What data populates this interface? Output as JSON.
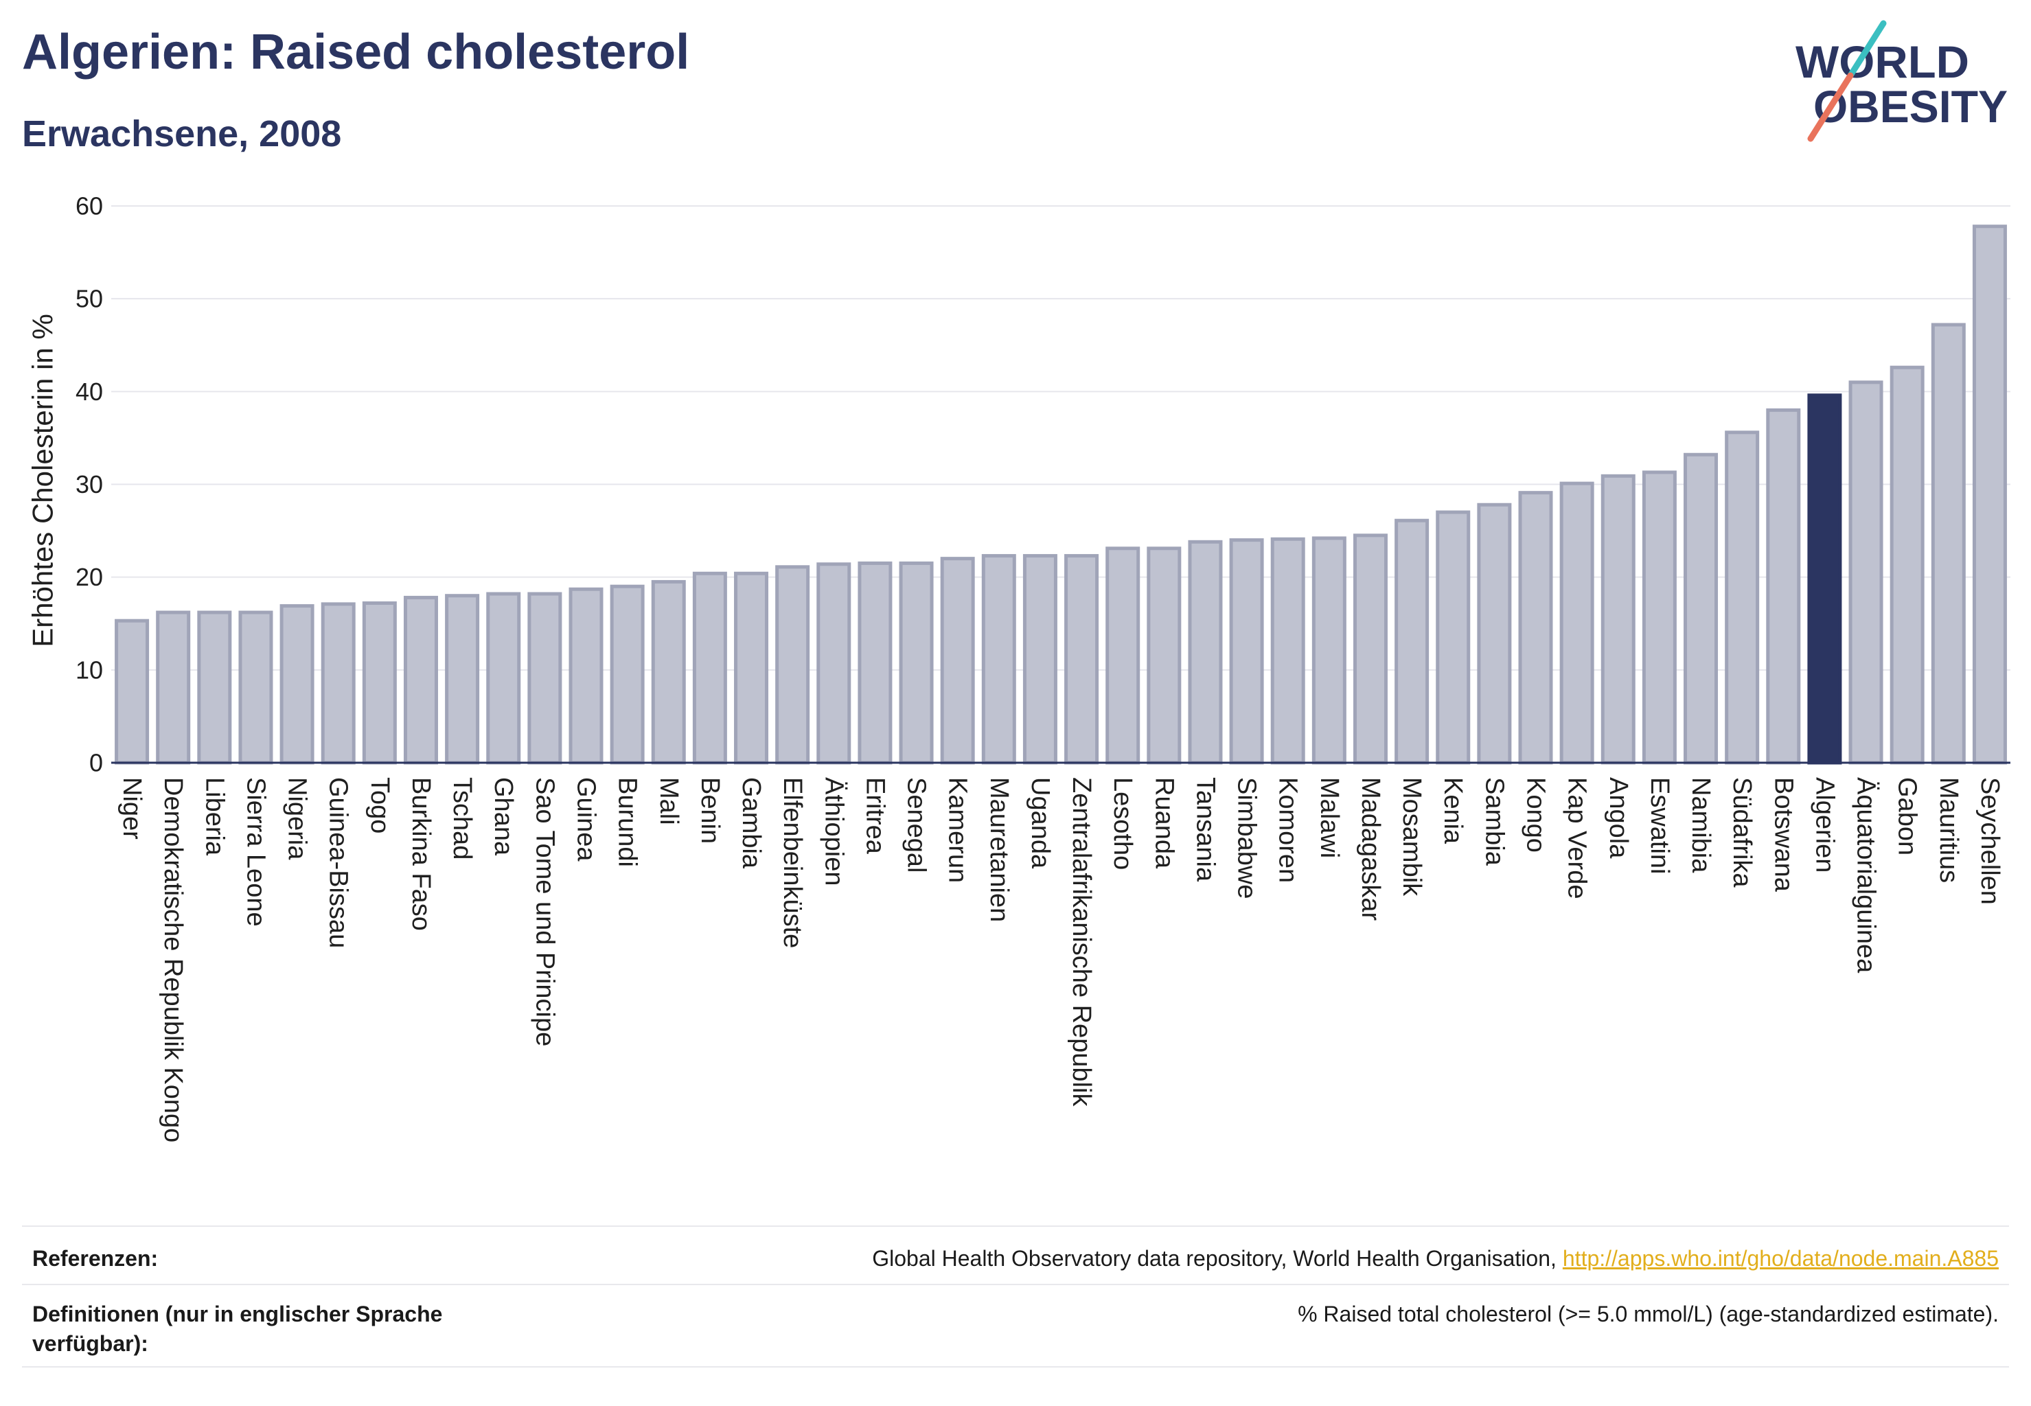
{
  "colors": {
    "title": "#2b3561",
    "bar_fill": "#bfc2d0",
    "bar_border": "#a0a4b8",
    "bar_highlight": "#2b3561",
    "grid": "#e6e6ec",
    "axis": "#2b3561",
    "link": "#e2ae1c",
    "logo_teal": "#3bbfc1",
    "logo_coral": "#e9735c"
  },
  "logo": {
    "line1": "WORLD",
    "line2": "OBESITY"
  },
  "chart_data": {
    "type": "bar",
    "title": "Algerien: Raised cholesterol",
    "subtitle": "Erwachsene, 2008",
    "ylabel": "Erhöhtes Cholesterin in %",
    "ylim": [
      0,
      60
    ],
    "yticks": [
      0,
      10,
      20,
      30,
      40,
      50,
      60
    ],
    "grid": true,
    "highlight": "Algerien",
    "categories": [
      "Niger",
      "Demokratische Republik Kongo",
      "Liberia",
      "Sierra Leone",
      "Nigeria",
      "Guinea-Bissau",
      "Togo",
      "Burkina Faso",
      "Tschad",
      "Ghana",
      "Sao Tome und Principe",
      "Guinea",
      "Burundi",
      "Mali",
      "Benin",
      "Gambia",
      "Elfenbeinküste",
      "Äthiopien",
      "Eritrea",
      "Senegal",
      "Kamerun",
      "Mauretanien",
      "Uganda",
      "Zentralafrikanische Republik",
      "Lesotho",
      "Ruanda",
      "Tansania",
      "Simbabwe",
      "Komoren",
      "Malawi",
      "Madagaskar",
      "Mosambik",
      "Kenia",
      "Sambia",
      "Kongo",
      "Kap Verde",
      "Angola",
      "Eswatini",
      "Namibia",
      "Südafrika",
      "Botswana",
      "Algerien",
      "Äquatorialguinea",
      "Gabon",
      "Mauritius",
      "Seychellen"
    ],
    "values": [
      15.3,
      16.2,
      16.2,
      16.2,
      16.9,
      17.1,
      17.2,
      17.8,
      18.0,
      18.2,
      18.2,
      18.7,
      19.0,
      19.5,
      20.4,
      20.4,
      21.1,
      21.4,
      21.5,
      21.5,
      22.0,
      22.3,
      22.3,
      22.3,
      23.1,
      23.1,
      23.8,
      24.0,
      24.1,
      24.2,
      24.5,
      26.1,
      27.0,
      27.8,
      29.1,
      30.1,
      30.9,
      31.3,
      33.2,
      35.6,
      38.0,
      39.6,
      41.0,
      42.6,
      47.2,
      57.8
    ]
  },
  "footer": {
    "references_label": "Referenzen:",
    "references_text": "Global Health Observatory data repository, World Health Organisation,",
    "references_link": "http://apps.who.int/gho/data/node.main.A885",
    "definitions_label": "Definitionen (nur in englischer Sprache verfügbar):",
    "definitions_text": "% Raised total cholesterol (>= 5.0 mmol/L) (age-standardized estimate)."
  }
}
